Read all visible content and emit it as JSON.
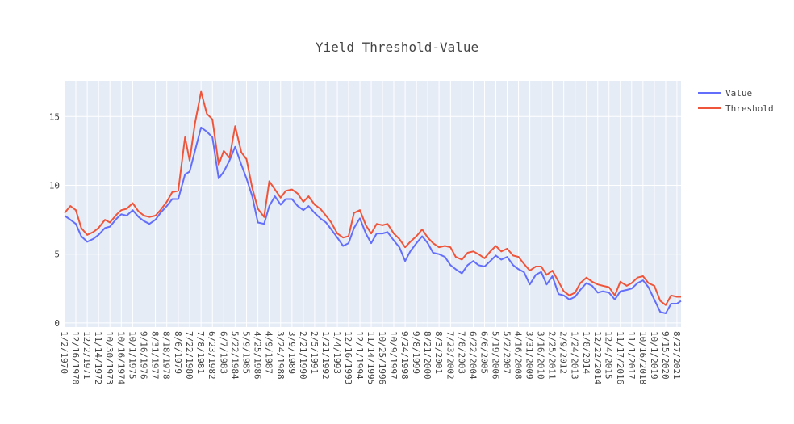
{
  "chart_data": {
    "type": "line",
    "title": "Yield Threshold-Value",
    "xlabel": "",
    "ylabel": "",
    "x_range": [
      "1/2/1970",
      "12/31/2021"
    ],
    "ylim": [
      -0.3,
      17.6
    ],
    "yticks": [
      0,
      5,
      10,
      15
    ],
    "grid": true,
    "legend_position": "top-right",
    "x_tick_labels": [
      "1/2/1970",
      "12/16/1970",
      "12/2/1971",
      "11/14/1972",
      "10/30/1973",
      "10/16/1974",
      "10/1/1975",
      "9/16/1976",
      "8/31/1977",
      "8/18/1978",
      "8/6/1979",
      "7/22/1980",
      "7/8/1981",
      "6/23/1982",
      "6/7/1983",
      "5/22/1984",
      "5/9/1985",
      "4/25/1986",
      "4/9/1987",
      "3/24/1988",
      "3/9/1989",
      "2/21/1990",
      "2/5/1991",
      "1/21/1992",
      "1/4/1993",
      "12/16/1993",
      "12/1/1994",
      "11/14/1995",
      "10/25/1996",
      "10/9/1997",
      "9/24/1998",
      "9/8/1999",
      "8/21/2000",
      "8/3/2001",
      "7/23/2002",
      "7/8/2003",
      "6/22/2004",
      "6/6/2005",
      "5/19/2006",
      "5/2/2007",
      "4/16/2008",
      "3/31/2009",
      "3/16/2010",
      "2/25/2011",
      "2/9/2012",
      "1/24/2013",
      "1/8/2014",
      "12/22/2014",
      "12/4/2015",
      "11/17/2016",
      "11/1/2017",
      "10/16/2018",
      "10/1/2019",
      "9/15/2020",
      "8/27/2021"
    ],
    "x": [
      "1/2/1970",
      "7/1/1970",
      "12/16/1970",
      "6/1/1971",
      "12/2/1971",
      "6/1/1972",
      "11/14/1972",
      "6/1/1973",
      "10/30/1973",
      "6/1/1974",
      "10/16/1974",
      "4/1/1975",
      "10/1/1975",
      "4/1/1976",
      "9/16/1976",
      "3/1/1977",
      "8/31/1977",
      "2/1/1978",
      "8/18/1978",
      "2/1/1979",
      "8/6/1979",
      "3/1/1980",
      "7/22/1980",
      "1/1/1981",
      "7/8/1981",
      "1/1/1982",
      "6/23/1982",
      "1/1/1983",
      "6/7/1983",
      "12/1/1983",
      "5/22/1984",
      "12/1/1984",
      "5/9/1985",
      "11/1/1985",
      "4/25/1986",
      "11/1/1986",
      "4/9/1987",
      "10/1/1987",
      "3/24/1988",
      "9/1/1988",
      "3/9/1989",
      "9/1/1989",
      "2/21/1990",
      "8/1/1990",
      "2/5/1991",
      "8/1/1991",
      "1/21/1992",
      "7/1/1992",
      "1/4/1993",
      "7/1/1993",
      "12/16/1993",
      "6/1/1994",
      "12/1/1994",
      "6/1/1995",
      "11/14/1995",
      "5/1/1996",
      "10/25/1996",
      "4/1/1997",
      "10/9/1997",
      "4/1/1998",
      "9/24/1998",
      "3/1/1999",
      "9/8/1999",
      "3/1/2000",
      "8/21/2000",
      "2/1/2001",
      "8/3/2001",
      "2/1/2002",
      "7/23/2002",
      "1/1/2003",
      "7/8/2003",
      "1/1/2004",
      "6/22/2004",
      "12/1/2004",
      "6/6/2005",
      "12/1/2005",
      "5/19/2006",
      "11/1/2006",
      "5/2/2007",
      "11/1/2007",
      "4/16/2008",
      "10/1/2008",
      "3/31/2009",
      "10/1/2009",
      "3/16/2010",
      "9/1/2010",
      "2/25/2011",
      "9/1/2011",
      "2/9/2012",
      "8/1/2012",
      "1/24/2013",
      "7/1/2013",
      "1/8/2014",
      "7/1/2014",
      "12/22/2014",
      "6/1/2015",
      "12/4/2015",
      "6/1/2016",
      "11/17/2016",
      "6/1/2017",
      "11/1/2017",
      "5/1/2018",
      "10/16/2018",
      "4/1/2019",
      "10/1/2019",
      "4/1/2020",
      "9/15/2020",
      "3/1/2021",
      "8/27/2021",
      "12/31/2021"
    ],
    "series": [
      {
        "name": "Value",
        "color": "#636efa",
        "values": [
          7.8,
          7.5,
          7.2,
          6.3,
          5.9,
          6.1,
          6.4,
          6.9,
          7.0,
          7.6,
          7.9,
          7.8,
          8.2,
          7.7,
          7.4,
          7.2,
          7.5,
          8.0,
          8.5,
          9.0,
          9.0,
          10.8,
          11.0,
          12.5,
          14.2,
          13.9,
          13.5,
          10.5,
          11.0,
          11.8,
          12.8,
          11.5,
          10.5,
          9.2,
          7.3,
          7.2,
          8.5,
          9.2,
          8.6,
          9.0,
          9.0,
          8.5,
          8.2,
          8.5,
          8.0,
          7.6,
          7.3,
          6.8,
          6.2,
          5.6,
          5.8,
          6.9,
          7.6,
          6.5,
          5.8,
          6.5,
          6.5,
          6.6,
          6.0,
          5.5,
          4.5,
          5.2,
          5.8,
          6.3,
          5.8,
          5.1,
          5.0,
          4.8,
          4.2,
          3.9,
          3.6,
          4.2,
          4.5,
          4.2,
          4.1,
          4.5,
          4.9,
          4.6,
          4.8,
          4.2,
          3.9,
          3.7,
          2.8,
          3.5,
          3.7,
          2.8,
          3.4,
          2.1,
          2.0,
          1.7,
          1.9,
          2.4,
          2.9,
          2.7,
          2.2,
          2.3,
          2.2,
          1.7,
          2.3,
          2.4,
          2.5,
          2.9,
          3.1,
          2.6,
          1.7,
          0.8,
          0.7,
          1.4,
          1.4,
          1.6
        ]
      },
      {
        "name": "Threshold",
        "color": "#ef553b",
        "values": [
          8.0,
          8.5,
          8.2,
          6.9,
          6.4,
          6.6,
          6.9,
          7.5,
          7.3,
          7.9,
          8.2,
          8.3,
          8.7,
          8.1,
          7.8,
          7.7,
          7.8,
          8.2,
          8.8,
          9.5,
          9.6,
          13.5,
          11.8,
          14.5,
          16.8,
          15.2,
          14.8,
          11.5,
          12.5,
          12.0,
          14.3,
          12.4,
          11.9,
          9.8,
          8.3,
          7.7,
          10.3,
          9.7,
          9.1,
          9.6,
          9.7,
          9.4,
          8.8,
          9.2,
          8.6,
          8.3,
          7.8,
          7.3,
          6.5,
          6.2,
          6.3,
          8.0,
          8.2,
          7.1,
          6.5,
          7.2,
          7.1,
          7.2,
          6.5,
          6.1,
          5.5,
          5.9,
          6.3,
          6.8,
          6.2,
          5.8,
          5.5,
          5.6,
          5.5,
          4.8,
          4.6,
          5.1,
          5.2,
          5.0,
          4.7,
          5.2,
          5.6,
          5.2,
          5.4,
          4.9,
          4.8,
          4.3,
          3.8,
          4.1,
          4.1,
          3.5,
          3.8,
          3.0,
          2.3,
          2.0,
          2.2,
          2.9,
          3.3,
          3.0,
          2.8,
          2.7,
          2.6,
          2.0,
          3.0,
          2.7,
          2.9,
          3.3,
          3.4,
          2.9,
          2.7,
          1.6,
          1.3,
          2.0,
          1.9,
          1.9
        ]
      }
    ]
  }
}
